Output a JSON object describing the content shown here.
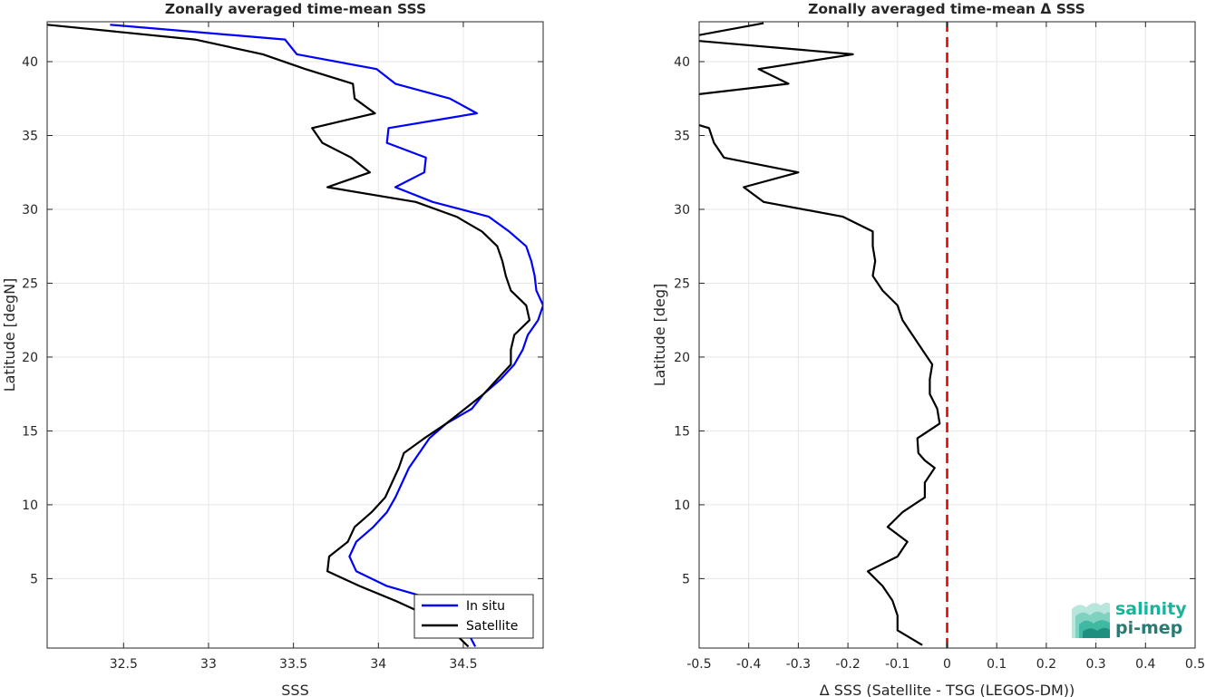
{
  "chart_data": [
    {
      "type": "line",
      "title": "Zonally averaged time-mean SSS",
      "xlabel": "SSS",
      "ylabel": "Latitude [degN]",
      "xlim": [
        32.05,
        34.97
      ],
      "ylim": [
        0.3,
        42.7
      ],
      "xticks": [
        32.5,
        33,
        33.5,
        34,
        34.5
      ],
      "xtick_labels": [
        "32.5",
        "33",
        "33.5",
        "34",
        "34.5"
      ],
      "yticks": [
        5,
        10,
        15,
        20,
        25,
        30,
        35,
        40
      ],
      "ytick_labels": [
        "5",
        "10",
        "15",
        "20",
        "25",
        "30",
        "35",
        "40"
      ],
      "grid": true,
      "legend_position": "bottom-right",
      "series": [
        {
          "name": "In situ",
          "color": "#0000ff",
          "points": [
            [
              32.42,
              42.5
            ],
            [
              33.45,
              41.5
            ],
            [
              33.52,
              40.5
            ],
            [
              33.99,
              39.5
            ],
            [
              34.1,
              38.5
            ],
            [
              34.42,
              37.5
            ],
            [
              34.58,
              36.5
            ],
            [
              34.06,
              35.5
            ],
            [
              34.05,
              34.5
            ],
            [
              34.28,
              33.5
            ],
            [
              34.27,
              32.5
            ],
            [
              34.1,
              31.5
            ],
            [
              34.32,
              30.5
            ],
            [
              34.65,
              29.5
            ],
            [
              34.77,
              28.5
            ],
            [
              34.87,
              27.5
            ],
            [
              34.9,
              26.5
            ],
            [
              34.92,
              25.5
            ],
            [
              34.93,
              24.5
            ],
            [
              34.97,
              23.5
            ],
            [
              34.94,
              22.5
            ],
            [
              34.88,
              21.5
            ],
            [
              34.85,
              20.5
            ],
            [
              34.8,
              19.5
            ],
            [
              34.72,
              18.5
            ],
            [
              34.62,
              17.5
            ],
            [
              34.55,
              16.5
            ],
            [
              34.4,
              15.5
            ],
            [
              34.3,
              14.5
            ],
            [
              34.24,
              13.5
            ],
            [
              34.18,
              12.5
            ],
            [
              34.14,
              11.5
            ],
            [
              34.1,
              10.5
            ],
            [
              34.05,
              9.5
            ],
            [
              33.97,
              8.5
            ],
            [
              33.87,
              7.5
            ],
            [
              33.83,
              6.5
            ],
            [
              33.87,
              5.5
            ],
            [
              34.05,
              4.5
            ],
            [
              34.35,
              3.5
            ],
            [
              34.45,
              2.5
            ],
            [
              34.52,
              1.5
            ],
            [
              34.57,
              0.4
            ]
          ]
        },
        {
          "name": "Satellite",
          "color": "#000000",
          "points": [
            [
              32.05,
              42.5
            ],
            [
              32.92,
              41.5
            ],
            [
              33.32,
              40.5
            ],
            [
              33.57,
              39.5
            ],
            [
              33.85,
              38.5
            ],
            [
              33.86,
              37.5
            ],
            [
              33.98,
              36.5
            ],
            [
              33.61,
              35.5
            ],
            [
              33.67,
              34.5
            ],
            [
              33.84,
              33.5
            ],
            [
              33.95,
              32.5
            ],
            [
              33.7,
              31.5
            ],
            [
              34.22,
              30.5
            ],
            [
              34.46,
              29.5
            ],
            [
              34.61,
              28.5
            ],
            [
              34.7,
              27.5
            ],
            [
              34.73,
              26.5
            ],
            [
              34.75,
              25.5
            ],
            [
              34.78,
              24.5
            ],
            [
              34.87,
              23.5
            ],
            [
              34.89,
              22.5
            ],
            [
              34.8,
              21.5
            ],
            [
              34.78,
              20.5
            ],
            [
              34.78,
              19.5
            ],
            [
              34.7,
              18.5
            ],
            [
              34.62,
              17.5
            ],
            [
              34.51,
              16.5
            ],
            [
              34.4,
              15.5
            ],
            [
              34.27,
              14.5
            ],
            [
              34.15,
              13.5
            ],
            [
              34.12,
              12.5
            ],
            [
              34.08,
              11.5
            ],
            [
              34.04,
              10.5
            ],
            [
              33.96,
              9.5
            ],
            [
              33.86,
              8.5
            ],
            [
              33.82,
              7.5
            ],
            [
              33.71,
              6.5
            ],
            [
              33.7,
              5.5
            ],
            [
              33.89,
              4.5
            ],
            [
              34.1,
              3.5
            ],
            [
              34.29,
              2.5
            ],
            [
              34.43,
              1.5
            ],
            [
              34.53,
              0.4
            ]
          ]
        }
      ]
    },
    {
      "type": "line",
      "title": "Zonally averaged time-mean Δ SSS",
      "xlabel": "Δ SSS (Satellite - TSG (LEGOS-DM))",
      "ylabel": "Latitude [deg]",
      "xlim": [
        -0.5,
        0.5
      ],
      "ylim": [
        0.3,
        42.7
      ],
      "xticks": [
        -0.5,
        -0.4,
        -0.3,
        -0.2,
        -0.1,
        0,
        0.1,
        0.2,
        0.3,
        0.4,
        0.5
      ],
      "xtick_labels": [
        "-0.5",
        "-0.4",
        "-0.3",
        "-0.2",
        "-0.1",
        "0",
        "0.1",
        "0.2",
        "0.3",
        "0.4",
        "0.5"
      ],
      "yticks": [
        5,
        10,
        15,
        20,
        25,
        30,
        35,
        40
      ],
      "ytick_labels": [
        "5",
        "10",
        "15",
        "20",
        "25",
        "30",
        "35",
        "40"
      ],
      "grid": true,
      "reference_line": {
        "x": 0,
        "color": "#e00000",
        "style": "dashed"
      },
      "series": [
        {
          "color": "#000000",
          "points": [
            [
              -0.37,
              42.6
            ],
            [
              -0.5,
              41.8
            ]
          ]
        },
        {
          "color": "#000000",
          "points": [
            [
              -0.5,
              41.4
            ],
            [
              -0.19,
              40.5
            ],
            [
              -0.38,
              39.5
            ],
            [
              -0.32,
              38.5
            ],
            [
              -0.5,
              37.8
            ]
          ]
        },
        {
          "color": "#000000",
          "points": [
            [
              -0.5,
              35.7
            ],
            [
              -0.48,
              35.5
            ],
            [
              -0.47,
              34.5
            ],
            [
              -0.45,
              33.5
            ],
            [
              -0.3,
              32.5
            ],
            [
              -0.41,
              31.5
            ],
            [
              -0.37,
              30.5
            ],
            [
              -0.21,
              29.5
            ],
            [
              -0.15,
              28.5
            ],
            [
              -0.15,
              27.5
            ],
            [
              -0.145,
              26.5
            ],
            [
              -0.15,
              25.5
            ],
            [
              -0.13,
              24.5
            ],
            [
              -0.1,
              23.5
            ],
            [
              -0.09,
              22.5
            ],
            [
              -0.07,
              21.5
            ],
            [
              -0.05,
              20.5
            ],
            [
              -0.03,
              19.5
            ],
            [
              -0.035,
              18.5
            ],
            [
              -0.035,
              17.5
            ],
            [
              -0.02,
              16.5
            ],
            [
              -0.015,
              15.5
            ],
            [
              -0.06,
              14.5
            ],
            [
              -0.058,
              13.5
            ],
            [
              -0.045,
              13.0
            ],
            [
              -0.025,
              12.5
            ],
            [
              -0.045,
              11.5
            ],
            [
              -0.045,
              10.5
            ],
            [
              -0.09,
              9.5
            ],
            [
              -0.12,
              8.5
            ],
            [
              -0.08,
              7.5
            ],
            [
              -0.1,
              6.5
            ],
            [
              -0.16,
              5.5
            ],
            [
              -0.13,
              4.5
            ],
            [
              -0.11,
              3.5
            ],
            [
              -0.1,
              2.5
            ],
            [
              -0.1,
              1.5
            ],
            [
              -0.05,
              0.5
            ]
          ]
        }
      ]
    }
  ],
  "legend": {
    "entries": [
      {
        "label": "In situ",
        "color": "#0000ff"
      },
      {
        "label": "Satellite",
        "color": "#000000"
      }
    ]
  },
  "logo": {
    "line1": "salinity",
    "line2": "pi-mep",
    "color1": "#19b49a",
    "color2": "#2b7a73"
  }
}
